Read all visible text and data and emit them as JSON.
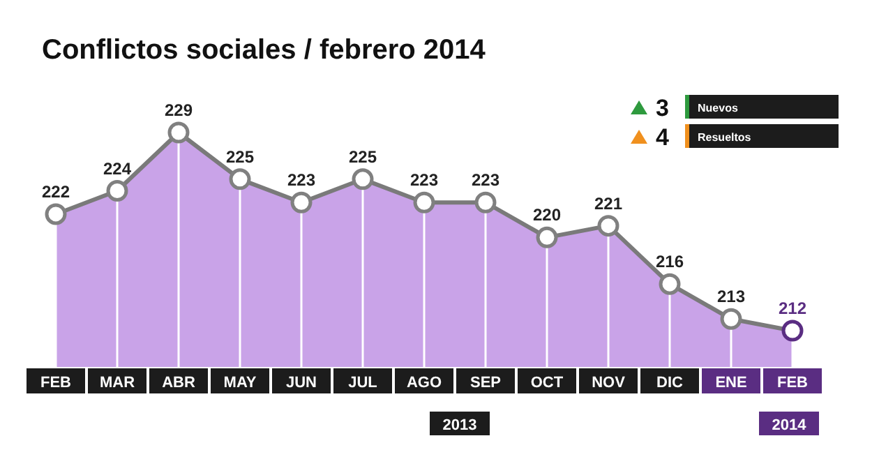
{
  "chart_data": {
    "type": "area",
    "title": "Conflictos sociales / febrero 2014",
    "categories": [
      "FEB",
      "MAR",
      "ABR",
      "MAY",
      "JUN",
      "JUL",
      "AGO",
      "SEP",
      "OCT",
      "NOV",
      "DIC",
      "ENE",
      "FEB"
    ],
    "series": [
      {
        "color": "#c9a3e8",
        "values": [
          222,
          224,
          229,
          225,
          223,
          225,
          223,
          223,
          220,
          221,
          216,
          213,
          212
        ]
      }
    ],
    "colors": [
      "#808080",
      "#808080",
      "#808080",
      "#808080",
      "#808080",
      "#808080",
      "#808080",
      "#808080",
      "#808080",
      "#808080",
      "#808080",
      "#808080",
      "#5a2d82"
    ],
    "tick_labels": "x",
    "data_labels": true,
    "marker": "circle",
    "annotations": [
      "3",
      "Nuevos",
      "4",
      "Resueltos",
      "2013",
      "2014"
    ]
  }
}
